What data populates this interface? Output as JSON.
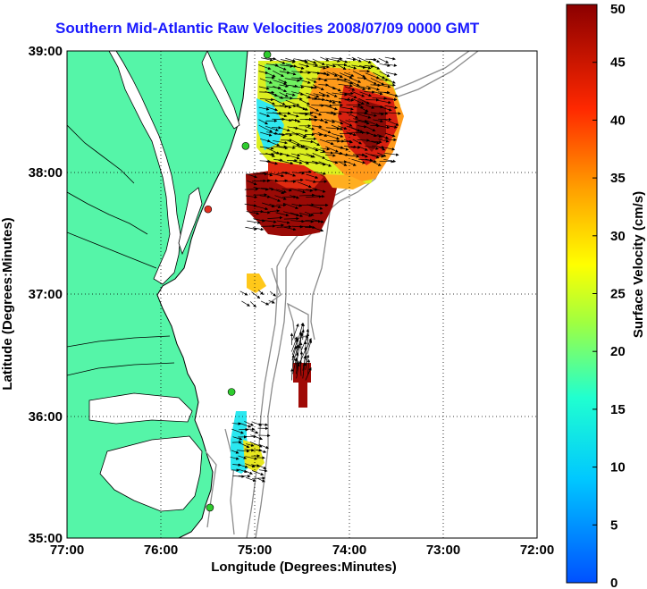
{
  "title": "Southern Mid-Atlantic Raw Velocities 2008/07/09 0000 GMT",
  "xlabel": "Longitude (Degrees:Minutes)",
  "ylabel": "Latitude (Degrees:Minutes)",
  "colorbar": {
    "label": "Surface Velocity (cm/s)",
    "ticks": [
      "0",
      "5",
      "10",
      "15",
      "20",
      "25",
      "30",
      "35",
      "40",
      "45",
      "50"
    ],
    "min": 0,
    "max": 50
  },
  "axes": {
    "x_ticks": [
      "77:00",
      "76:00",
      "75:00",
      "74:00",
      "73:00",
      "72:00"
    ],
    "y_ticks": [
      "39:00",
      "38:00",
      "37:00",
      "36:00",
      "35:00"
    ],
    "xlim": [
      -77,
      -72
    ],
    "ylim": [
      35,
      39
    ],
    "grid": true
  },
  "colors": {
    "land": "#55f5a8",
    "title": "#1a1aff",
    "bathymetry": "#8c8c8c",
    "coastline": "#000000"
  },
  "stations": [
    {
      "lon": -74.87,
      "lat": 38.97,
      "color": "#2ecc2e"
    },
    {
      "lon": -75.1,
      "lat": 38.22,
      "color": "#2ecc2e"
    },
    {
      "lon": -75.5,
      "lat": 37.7,
      "color": "#e03020"
    },
    {
      "lon": -75.25,
      "lat": 36.2,
      "color": "#2ecc2e"
    },
    {
      "lon": -75.48,
      "lat": 35.25,
      "color": "#2ecc2e"
    }
  ],
  "velocity_regions": [
    {
      "name": "northern-field",
      "lon": [
        -74.95,
        -73.7
      ],
      "lat": [
        38.45,
        38.92
      ],
      "speed": 38
    },
    {
      "name": "northern-core",
      "lon": [
        -75.1,
        -74.4
      ],
      "lat": [
        37.5,
        38.0
      ],
      "speed": 48
    },
    {
      "name": "offshore-patch",
      "lon": [
        -74.6,
        -74.4
      ],
      "lat": [
        36.25,
        36.4
      ],
      "speed": 48
    },
    {
      "name": "hatteras-patch",
      "lon": [
        -75.25,
        -75.0
      ],
      "lat": [
        35.55,
        36.05
      ],
      "speed": 13
    },
    {
      "name": "small-patch",
      "lon": [
        -75.1,
        -74.9
      ],
      "lat": [
        36.95,
        37.05
      ],
      "speed": 30
    }
  ]
}
